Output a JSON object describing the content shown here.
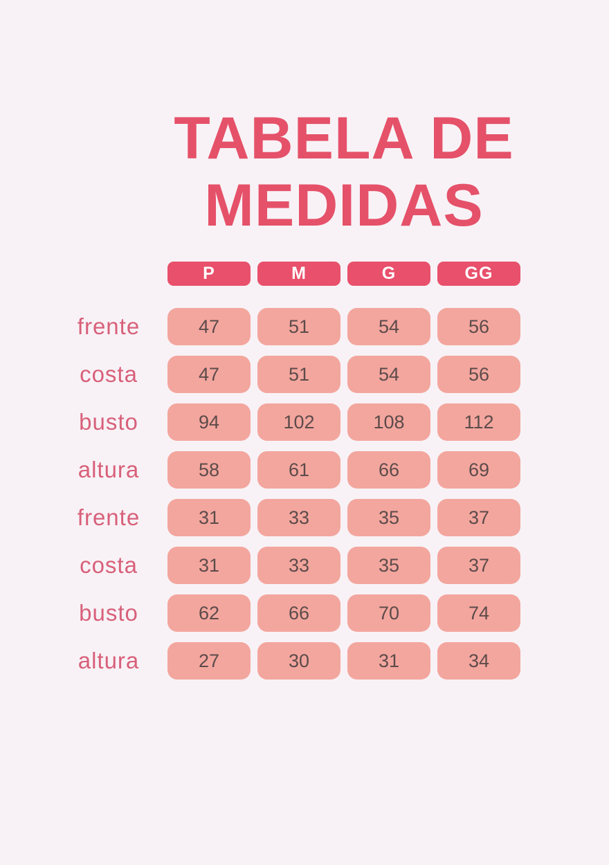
{
  "title": {
    "line1": "TABELA DE",
    "line2": "MEDIDAS"
  },
  "colors": {
    "background": "#f8f2f6",
    "accent": "#e8506b",
    "title_text": "#e55169",
    "label_text": "#d8607a",
    "cell_background": "#f3a69e",
    "cell_text": "#5c4b4a",
    "header_text": "#ffffff"
  },
  "chart_data": {
    "type": "table",
    "title": "TABELA DE MEDIDAS",
    "columns": [
      "P",
      "M",
      "G",
      "GG"
    ],
    "rows": [
      {
        "label": "frente",
        "values": [
          "47",
          "51",
          "54",
          "56"
        ]
      },
      {
        "label": "costa",
        "values": [
          "47",
          "51",
          "54",
          "56"
        ]
      },
      {
        "label": "busto",
        "values": [
          "94",
          "102",
          "108",
          "112"
        ]
      },
      {
        "label": "altura",
        "values": [
          "58",
          "61",
          "66",
          "69"
        ]
      },
      {
        "label": "frente",
        "values": [
          "31",
          "33",
          "35",
          "37"
        ]
      },
      {
        "label": "costa",
        "values": [
          "31",
          "33",
          "35",
          "37"
        ]
      },
      {
        "label": "busto",
        "values": [
          "62",
          "66",
          "70",
          "74"
        ]
      },
      {
        "label": "altura",
        "values": [
          "27",
          "30",
          "31",
          "34"
        ]
      }
    ]
  }
}
